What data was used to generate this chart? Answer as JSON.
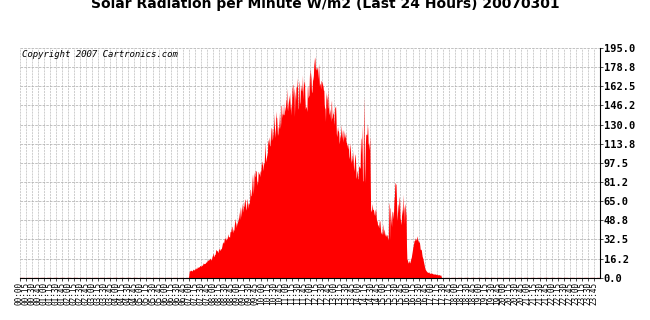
{
  "title": "Solar Radiation per Minute W/m2 (Last 24 Hours) 20070301",
  "copyright_text": "Copyright 2007 Cartronics.com",
  "yticks": [
    0.0,
    16.2,
    32.5,
    48.8,
    65.0,
    81.2,
    97.5,
    113.8,
    130.0,
    146.2,
    162.5,
    178.8,
    195.0
  ],
  "ymax": 195.0,
  "ymin": 0.0,
  "bar_color": "#FF0000",
  "background_color": "#FFFFFF",
  "plot_bg_color": "#FFFFFF",
  "grid_color": "#AAAAAA",
  "baseline_color": "#FF0000",
  "title_fontsize": 10,
  "copyright_fontsize": 6.5,
  "tick_label_fontsize": 5.5,
  "ytick_fontsize": 7.5
}
